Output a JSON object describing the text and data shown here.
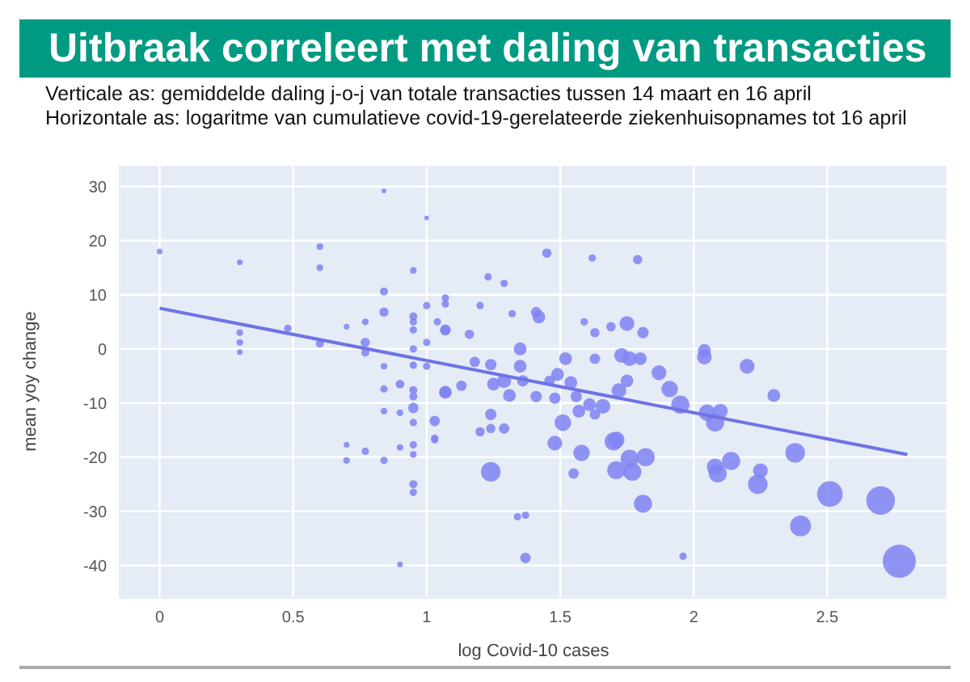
{
  "chart_data": {
    "type": "bubble",
    "title": "Uitbraak correleert met daling van transacties",
    "subtitle": "Verticale as: gemiddelde daling j-o-j van totale transacties tussen 14 maart en 16 april",
    "annotations": [
      "Horizontale as: logaritme van cumulatieve covid-19-gerelateerde ziekenhuisopnames tot 16 april"
    ],
    "xlabel": "log Covid-10 cases",
    "ylabel": "mean yoy change",
    "xlim": [
      -0.15,
      2.95
    ],
    "ylim": [
      -46,
      34
    ],
    "xticks": [
      0,
      0.5,
      1,
      1.5,
      2,
      2.5
    ],
    "yticks": [
      -40,
      -30,
      -20,
      -10,
      0,
      10,
      20,
      30
    ],
    "grid": true,
    "legend": false,
    "series": [
      {
        "type": "bubble",
        "marker": "circle",
        "color": "#7f84f2",
        "x": [
          2.77,
          2.7,
          2.51,
          2.4,
          2.38,
          2.24,
          2.25,
          2.14,
          2.09,
          2.08,
          2.08,
          2.05,
          2.1,
          1.95,
          1.91,
          1.87,
          2.2,
          2.3,
          2.04,
          2.04,
          1.81,
          1.82,
          1.76,
          1.77,
          1.71,
          1.24,
          1.7,
          1.71,
          1.58,
          1.48,
          1.51,
          1.66,
          1.75,
          1.73,
          1.76,
          1.8,
          1.81,
          1.72,
          1.75,
          1.57,
          1.49,
          1.42,
          1.41,
          1.45,
          1.79,
          1.62,
          1.37,
          1.96,
          1.34,
          1.37,
          1.03,
          1.2,
          1.24,
          1.29,
          1.24,
          1.07,
          1.13,
          1.25,
          1.29,
          1.31,
          1.36,
          1.41,
          1.35,
          1.24,
          1.18,
          1.35,
          1.07,
          1.16,
          1.52,
          1.63,
          1.54,
          1.56,
          1.61,
          1.63,
          1.55,
          1.48,
          1.46,
          1.23,
          1.29,
          1.32,
          1.59,
          1.63,
          1.69,
          1.07,
          1.2,
          0,
          0.3,
          0.3,
          0.3,
          0.3,
          0.48,
          0.6,
          0.6,
          0.6,
          0.7,
          0.7,
          0.7,
          0.77,
          0.77,
          0.77,
          0.77,
          0.84,
          0.84,
          0.84,
          0.84,
          0.84,
          0.84,
          0.84,
          0.9,
          0.9,
          0.9,
          0.9,
          0.95,
          0.95,
          0.95,
          0.95,
          0.95,
          0.95,
          0.95,
          0.95,
          0.95,
          0.95,
          0.95,
          0.95,
          0.95,
          0.95,
          1.0,
          1.0,
          1.0,
          1.0,
          1.03,
          1.03,
          1.07,
          1.07,
          1.07,
          1.04
        ],
        "values": [
          -39.2,
          -28,
          -26.8,
          -32.7,
          -19.2,
          -25,
          -22.5,
          -20.7,
          -23,
          -21.8,
          -13.6,
          -11.8,
          -11.5,
          -10.3,
          -7.4,
          -4.4,
          -3.2,
          -8.6,
          -1.5,
          -0.3,
          -28.6,
          -20,
          -20.3,
          -22.7,
          -22.4,
          -22.7,
          -17.1,
          -16.8,
          -19.2,
          -17.4,
          -13.6,
          -10.6,
          4.7,
          -1.2,
          -1.8,
          -1.8,
          3,
          -7.7,
          -5.9,
          -11.5,
          -4.7,
          5.9,
          6.8,
          17.7,
          16.5,
          16.8,
          -38.6,
          -38.3,
          -31,
          -30.7,
          -16.8,
          -15.3,
          -14.7,
          -14.7,
          -12.1,
          -8,
          -6.8,
          -6.5,
          -5.9,
          -8.6,
          -5.9,
          -8.8,
          -3.2,
          -2.9,
          -2.4,
          0,
          3.5,
          2.7,
          -1.8,
          -1.8,
          -6.2,
          -8.8,
          -10.3,
          -12.1,
          -23,
          -9.1,
          -5.9,
          13.3,
          12.1,
          6.5,
          5,
          3,
          4.1,
          9.4,
          8,
          18,
          16,
          3,
          1.2,
          -0.6,
          3.8,
          18.9,
          15,
          1,
          4.1,
          -17.7,
          -20.6,
          5,
          1.2,
          -0.7,
          -18.9,
          10.6,
          6.8,
          -3.2,
          -7.4,
          -11.5,
          -20.6,
          29.2,
          -6.5,
          -11.8,
          -18.2,
          -39.8,
          14.5,
          6,
          5,
          3.5,
          0,
          -3,
          -7.6,
          -8.8,
          -10.9,
          -13.6,
          -17.7,
          -19.5,
          -25,
          -26.5,
          24.2,
          8,
          1.2,
          -3.2,
          -13.3,
          -16.5,
          -8,
          3.5,
          8.3,
          5
        ],
        "sizes": [
          1,
          0.75,
          0.6,
          0.4,
          0.35,
          0.35,
          0.2,
          0.3,
          0.3,
          0.25,
          0.3,
          0.25,
          0.2,
          0.3,
          0.25,
          0.2,
          0.2,
          0.15,
          0.2,
          0.15,
          0.3,
          0.3,
          0.3,
          0.3,
          0.3,
          0.35,
          0.3,
          0.25,
          0.25,
          0.2,
          0.25,
          0.2,
          0.2,
          0.2,
          0.2,
          0.15,
          0.12,
          0.2,
          0.15,
          0.15,
          0.15,
          0.15,
          0.1,
          0.08,
          0.08,
          0.05,
          0.1,
          0.05,
          0.05,
          0.05,
          0.05,
          0.08,
          0.08,
          0.1,
          0.12,
          0.15,
          0.1,
          0.15,
          0.18,
          0.15,
          0.12,
          0.12,
          0.15,
          0.12,
          0.1,
          0.15,
          0.1,
          0.08,
          0.15,
          0.1,
          0.15,
          0.12,
          0.15,
          0.1,
          0.1,
          0.12,
          0.1,
          0.05,
          0.05,
          0.05,
          0.05,
          0.08,
          0.08,
          0.05,
          0.05,
          0.03,
          0.03,
          0.04,
          0.04,
          0.03,
          0.05,
          0.04,
          0.04,
          0.06,
          0.03,
          0.03,
          0.04,
          0.04,
          0.08,
          0.06,
          0.05,
          0.06,
          0.08,
          0.04,
          0.05,
          0.04,
          0.05,
          0.02,
          0.07,
          0.04,
          0.04,
          0.03,
          0.04,
          0.06,
          0.05,
          0.05,
          0.05,
          0.05,
          0.06,
          0.06,
          0.1,
          0.05,
          0.05,
          0.04,
          0.06,
          0.05,
          0.02,
          0.05,
          0.05,
          0.05,
          0.1,
          0.05,
          0.12,
          0.1,
          0.05,
          0.05
        ]
      },
      {
        "type": "line",
        "marker": "none",
        "color": "#6e73e6",
        "x": [
          0,
          2.8
        ],
        "values": [
          7.5,
          -19.5
        ]
      }
    ]
  }
}
